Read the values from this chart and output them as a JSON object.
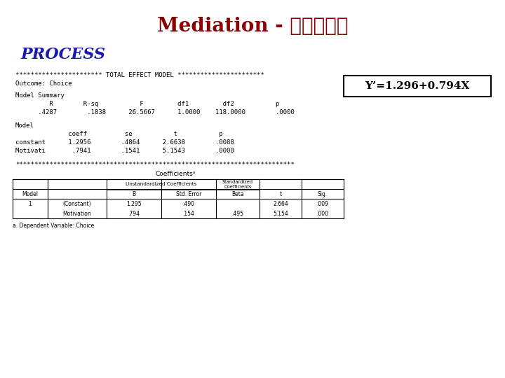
{
  "title_latin": "Mediation - ",
  "title_hebrew": "תיווך",
  "title_color": "#8B0000",
  "process_label": "PROCESS",
  "process_color": "#1a1aaa",
  "bg_color": "#ffffff",
  "stars_top": "*********************** TOTAL EFFECT MODEL ***********************",
  "outcome_line": "Outcome: Choice",
  "equation_box": "Y’=1.296+0.794X",
  "model_summary_header": "Model Summary",
  "ms_cols": "         R        R-sq           F         df1         df2           p",
  "ms_vals": "      .4287        .1838      26.5667      1.0000    118.0000        .0000",
  "model_label": "Model",
  "m_cols": "              coeff          se           t           p",
  "m_row1": "constant      1.2956        .4864      2.6638        .0088",
  "m_row2": "Motivati       .7941        .1541      5.1543        .0000",
  "bottom_stars": "**************************************************************************",
  "table_title": "Coefficientsᵃ",
  "table_footnote": "a. Dependent Variable: Choice",
  "mono_fs": 6.5,
  "title_fs": 20,
  "process_fs": 16,
  "eq_fs": 11
}
